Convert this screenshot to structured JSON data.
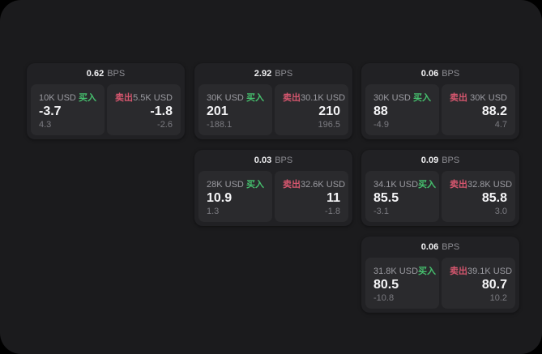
{
  "labels": {
    "bps_unit": "BPS",
    "buy": "买入",
    "sell": "卖出"
  },
  "colors": {
    "background": "#000000",
    "panel": "#1b1b1d",
    "card": "#212124",
    "cell": "#2a2a2d",
    "buy_green": "#46c06e",
    "sell_red": "#d5566e",
    "primary_text": "#f4f4f6",
    "muted_text": "#9b9ba1",
    "dim_text": "#7b7b81"
  },
  "cards": [
    {
      "bps_value": "0.62",
      "buy": {
        "amount": "10K USD",
        "price": "-3.7",
        "delta": "4.3"
      },
      "sell": {
        "amount": "5.5K USD",
        "price": "-1.8",
        "delta": "-2.6"
      }
    },
    {
      "bps_value": "2.92",
      "buy": {
        "amount": "30K USD",
        "price": "201",
        "delta": "-188.1"
      },
      "sell": {
        "amount": "30.1K USD",
        "price": "210",
        "delta": "196.5"
      }
    },
    {
      "bps_value": "0.06",
      "buy": {
        "amount": "30K USD",
        "price": "88",
        "delta": "-4.9"
      },
      "sell": {
        "amount": "30K USD",
        "price": "88.2",
        "delta": "4.7"
      }
    },
    {
      "bps_value": "0.03",
      "buy": {
        "amount": "28K USD",
        "price": "10.9",
        "delta": "1.3"
      },
      "sell": {
        "amount": "32.6K USD",
        "price": "11",
        "delta": "-1.8"
      }
    },
    {
      "bps_value": "0.09",
      "buy": {
        "amount": "34.1K USD",
        "price": "85.5",
        "delta": "-3.1"
      },
      "sell": {
        "amount": "32.8K USD",
        "price": "85.8",
        "delta": "3.0"
      }
    },
    {
      "bps_value": "0.06",
      "buy": {
        "amount": "31.8K USD",
        "price": "80.5",
        "delta": "-10.8"
      },
      "sell": {
        "amount": "39.1K USD",
        "price": "80.7",
        "delta": "10.2"
      }
    }
  ]
}
